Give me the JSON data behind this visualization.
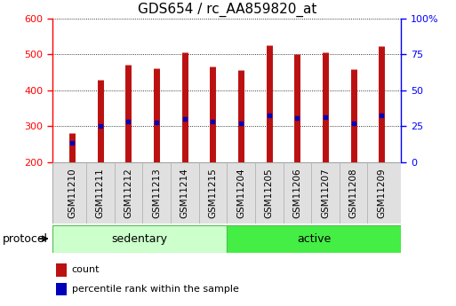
{
  "title": "GDS654 / rc_AA859820_at",
  "categories": [
    "GSM11210",
    "GSM11211",
    "GSM11212",
    "GSM11213",
    "GSM11214",
    "GSM11215",
    "GSM11204",
    "GSM11205",
    "GSM11206",
    "GSM11207",
    "GSM11208",
    "GSM11209"
  ],
  "counts": [
    280,
    430,
    470,
    460,
    505,
    465,
    457,
    525,
    500,
    505,
    458,
    522
  ],
  "percentile_ranks": [
    255,
    302,
    313,
    310,
    320,
    314,
    307,
    330,
    322,
    325,
    308,
    330
  ],
  "y_min": 200,
  "y_max": 600,
  "y_ticks_left": [
    200,
    300,
    400,
    500,
    600
  ],
  "y_ticks_right_labels": [
    "0",
    "25",
    "50",
    "75",
    "100%"
  ],
  "y_ticks_right_positions": [
    200,
    300,
    400,
    500,
    600
  ],
  "bar_color": "#bb1111",
  "dot_color": "#0000bb",
  "groups": [
    {
      "label": "sedentary",
      "start": 0,
      "end": 6,
      "color": "#ccffcc",
      "border": "#55bb55"
    },
    {
      "label": "active",
      "start": 6,
      "end": 12,
      "color": "#44ee44",
      "border": "#55bb55"
    }
  ],
  "group_label": "protocol",
  "legend_items": [
    {
      "label": "count",
      "color": "#bb1111"
    },
    {
      "label": "percentile rank within the sample",
      "color": "#0000bb"
    }
  ],
  "tick_fontsize": 8,
  "label_fontsize": 9,
  "title_fontsize": 11
}
